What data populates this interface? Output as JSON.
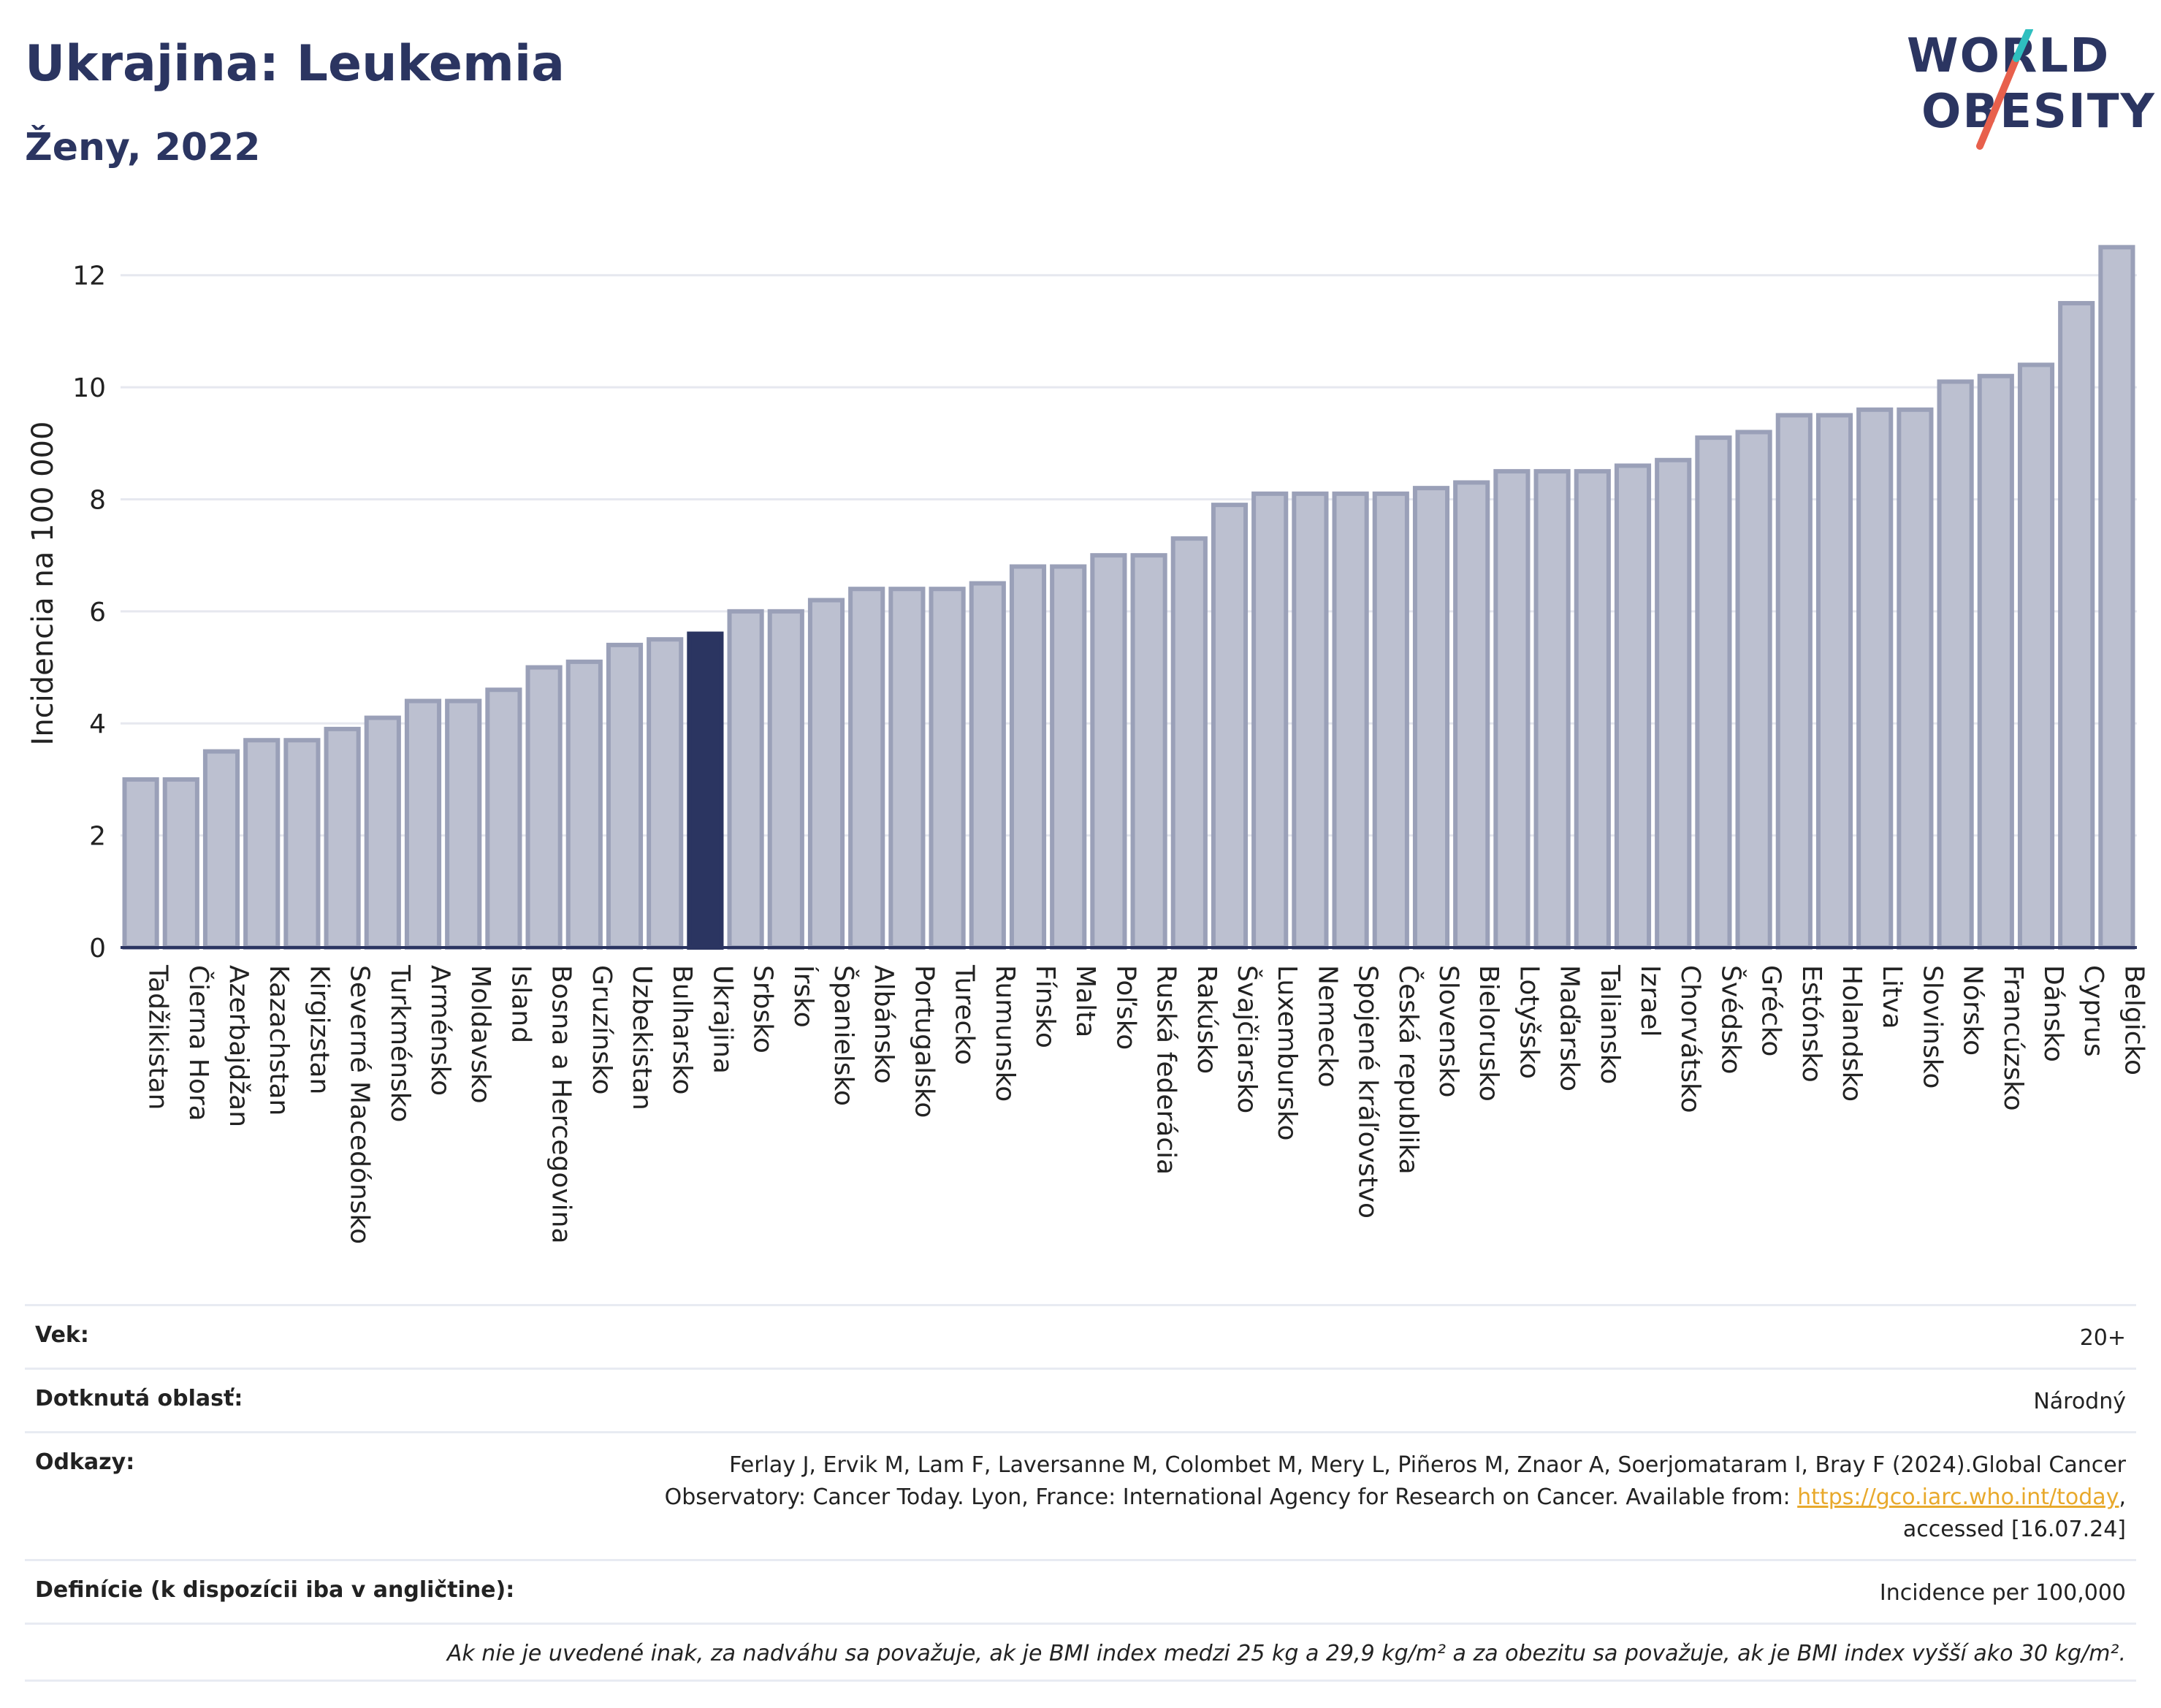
{
  "header": {
    "title": "Ukrajina: Leukemia",
    "subtitle": "Ženy, 2022"
  },
  "logo": {
    "line1": "WORLD",
    "line2": "OBESITY",
    "accent_color": "#e8604c",
    "accent2_color": "#2fbfbf"
  },
  "colors": {
    "bar": "#bcc0d0",
    "bar_stroke": "#9aa0b8",
    "highlight": "#2b3561",
    "grid": "#e6e8ef",
    "axis": "#2b3561"
  },
  "chart_data": {
    "type": "bar",
    "ylabel": "Incidencia na 100 000",
    "xlabel": "",
    "ylim": [
      0,
      13
    ],
    "yticks": [
      0,
      2,
      4,
      6,
      8,
      10,
      12
    ],
    "grid": true,
    "highlight": "Ukrajina",
    "categories": [
      "Tadžikistan",
      "Čierna Hora",
      "Azerbajdžan",
      "Kazachstan",
      "Kirgizstan",
      "Severné Macedónsko",
      "Turkménsko",
      "Arménsko",
      "Moldavsko",
      "Island",
      "Bosna a Hercegovina",
      "Gruzínsko",
      "Uzbekistan",
      "Bulharsko",
      "Ukrajina",
      "Srbsko",
      "Írsko",
      "Španielsko",
      "Albánsko",
      "Portugalsko",
      "Turecko",
      "Rumunsko",
      "Fínsko",
      "Malta",
      "Poľsko",
      "Ruská federácia",
      "Rakúsko",
      "Švajčiarsko",
      "Luxembursko",
      "Nemecko",
      "Spojené kráľovstvo",
      "Česká republika",
      "Slovensko",
      "Bielorusko",
      "Lotyšsko",
      "Maďarsko",
      "Taliansko",
      "Izrael",
      "Chorvátsko",
      "Švédsko",
      "Grécko",
      "Estónsko",
      "Holandsko",
      "Litva",
      "Slovinsko",
      "Nórsko",
      "Francúzsko",
      "Dánsko",
      "Cyprus",
      "Belgicko"
    ],
    "values": [
      3.0,
      3.0,
      3.5,
      3.7,
      3.7,
      3.9,
      4.1,
      4.4,
      4.4,
      4.6,
      5.0,
      5.1,
      5.4,
      5.5,
      5.6,
      6.0,
      6.0,
      6.2,
      6.4,
      6.4,
      6.4,
      6.5,
      6.8,
      6.8,
      7.0,
      7.0,
      7.3,
      7.9,
      8.1,
      8.1,
      8.1,
      8.1,
      8.2,
      8.3,
      8.5,
      8.5,
      8.5,
      8.6,
      8.7,
      9.1,
      9.2,
      9.5,
      9.5,
      9.6,
      9.6,
      10.1,
      10.2,
      10.4,
      11.5,
      12.5
    ]
  },
  "meta": {
    "age_label": "Vek:",
    "age_value": "20+",
    "area_label": "Dotknutá oblasť:",
    "area_value": "Národný",
    "refs_label": "Odkazy:",
    "refs_text1": "Ferlay J, Ervik M, Lam F, Laversanne M, Colombet M, Mery L, Piñeros M, Znaor A, Soerjomataram I, Bray F (2024).Global Cancer Observatory: Cancer Today. Lyon, France: International Agency for Research on Cancer. Available from:",
    "refs_link": "https://gco.iarc.who.int/today",
    "refs_text2": ", accessed [16.07.24]",
    "def_label": "Definície (k dispozícii iba v angličtine):",
    "def_value": "Incidence per 100,000",
    "note": "Ak nie je uvedené inak, za nadváhu sa považuje, ak je BMI index medzi 25 kg a 29,9 kg/m² a za obezitu sa považuje, ak je BMI index vyšší ako 30 kg/m²."
  }
}
